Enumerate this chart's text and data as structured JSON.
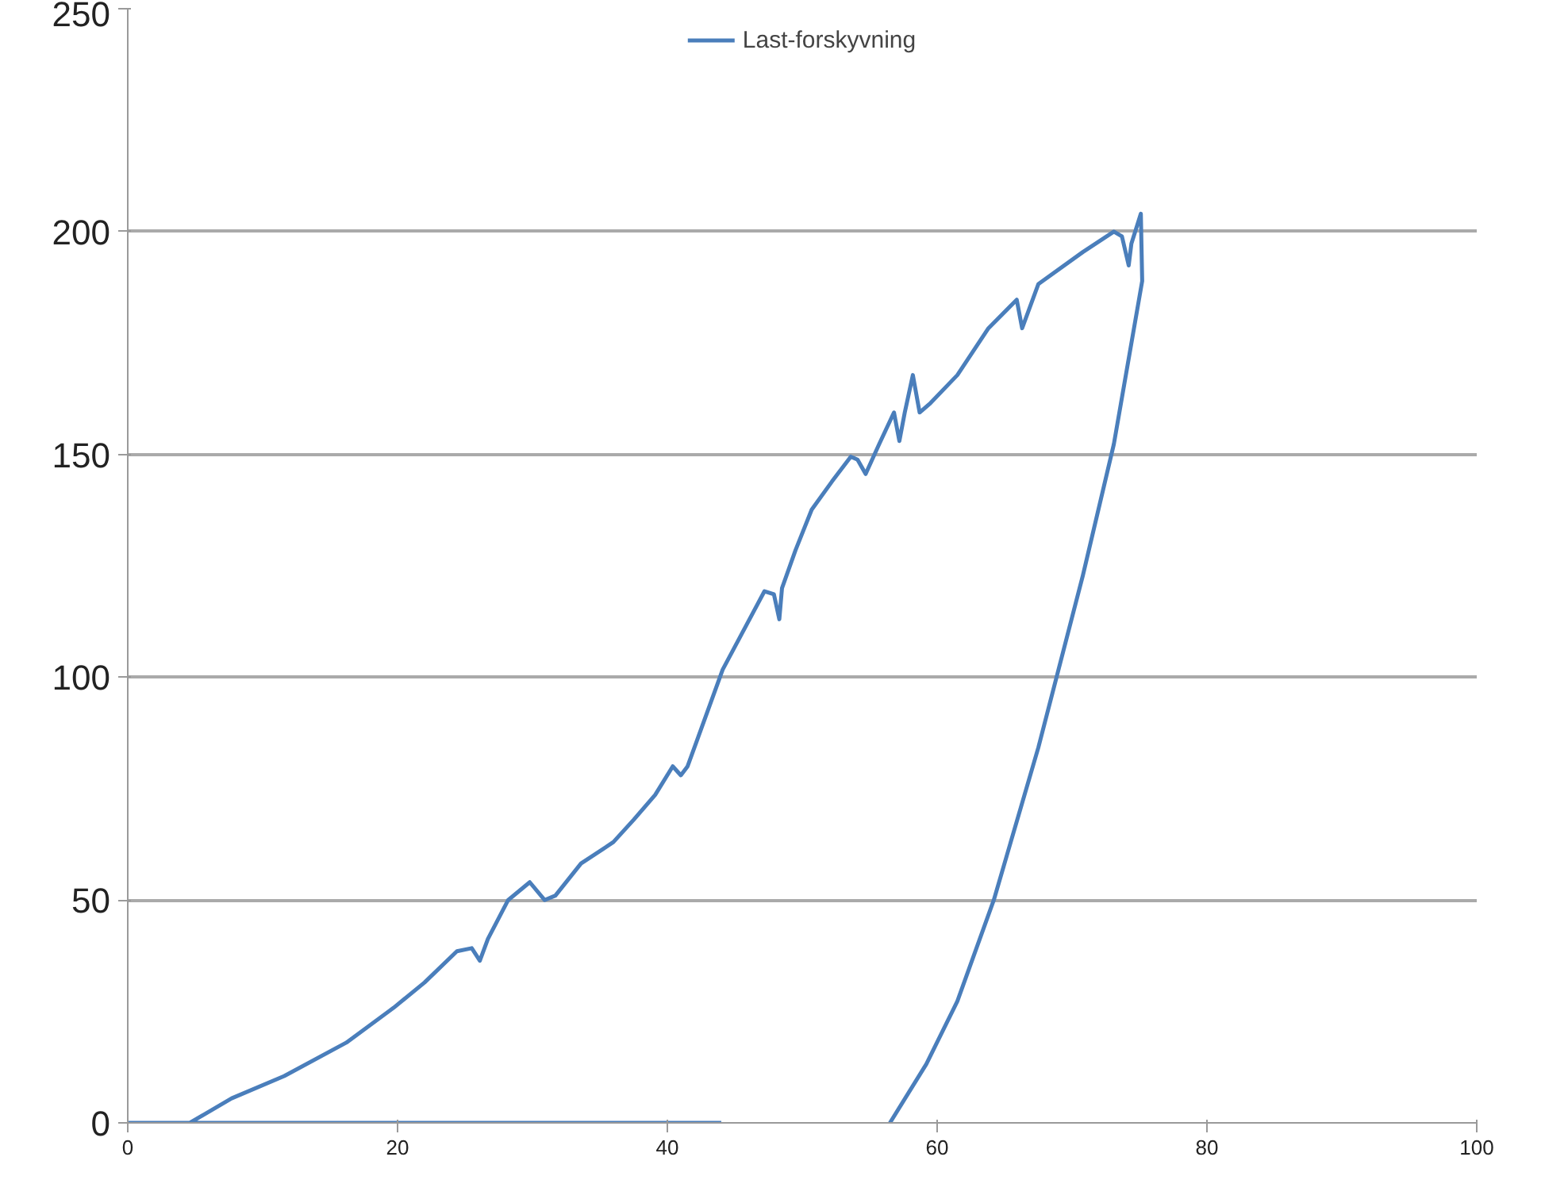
{
  "chart_data": {
    "type": "line",
    "legend": "top",
    "grid": "y",
    "marker": "none",
    "line_style": "solid",
    "xlim": [
      0,
      100
    ],
    "xticks": [
      0,
      20,
      40,
      60,
      80,
      100
    ],
    "ylim": [
      0,
      250
    ],
    "yticks": [
      0,
      50,
      100,
      150,
      200,
      250
    ],
    "series": [
      {
        "name": "Last-forskyvning",
        "color": "#4a7ebb",
        "x": [
          44,
          0,
          4.6,
          7.7,
          11.6,
          16.2,
          19.7,
          22.0,
          24.4,
          25.5,
          26.1,
          26.7,
          28.2,
          29.8,
          30.9,
          31.7,
          33.6,
          36.0,
          37.5,
          39.1,
          40.4,
          41.0,
          41.5,
          42.1,
          44.1,
          47.2,
          47.9,
          48.3,
          48.5,
          49.5,
          50.7,
          52.2,
          53.6,
          54.1,
          54.7,
          55.7,
          56.8,
          57.2,
          57.6,
          58.2,
          58.7,
          59.5,
          61.5,
          63.8,
          65.9,
          66.3,
          67.5,
          70.8,
          73.1,
          73.7,
          74.2,
          74.4,
          75.1,
          75.2,
          73.1,
          70.8,
          67.5,
          64.2,
          61.5,
          59.2,
          56.5
        ],
        "values": [
          0,
          0,
          0,
          5.5,
          10.5,
          18,
          25.8,
          31.5,
          38.5,
          39.2,
          36.4,
          41.3,
          50,
          54,
          50,
          51,
          58.2,
          63,
          68,
          73.6,
          80,
          78,
          80,
          85,
          101.7,
          119.3,
          118.6,
          113,
          120,
          128.5,
          137.6,
          143.9,
          149.5,
          148.8,
          145.6,
          152.3,
          159.4,
          153,
          159.4,
          167.8,
          159.4,
          161.5,
          167.8,
          178.3,
          184.7,
          178.3,
          188.2,
          195.4,
          200,
          198.9,
          192.4,
          197.3,
          204,
          188.9,
          152.3,
          122.8,
          84.2,
          50,
          27.3,
          13.2,
          0
        ]
      }
    ]
  }
}
